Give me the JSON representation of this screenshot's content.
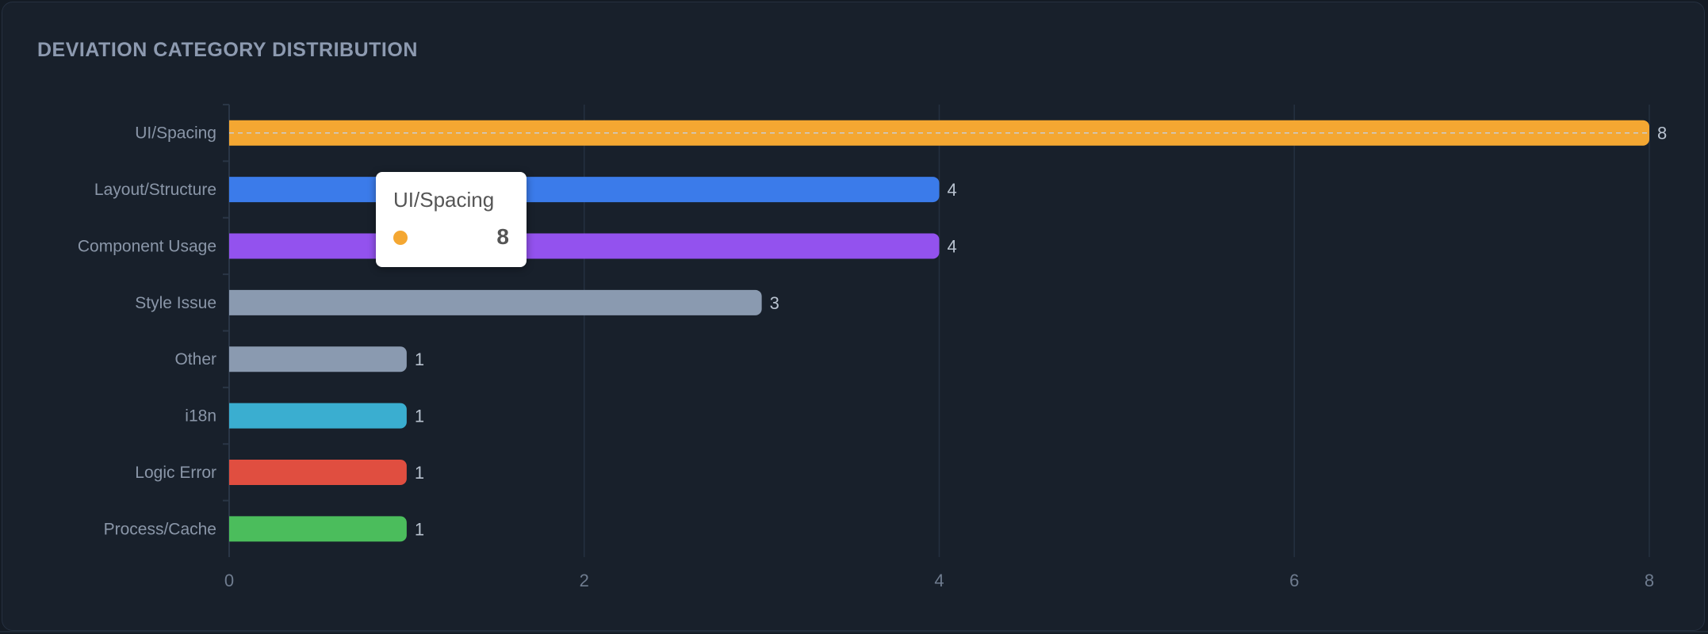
{
  "chart_data": {
    "type": "bar",
    "orientation": "horizontal",
    "title": "DEVIATION CATEGORY DISTRIBUTION",
    "categories": [
      "UI/Spacing",
      "Layout/Structure",
      "Component Usage",
      "Style Issue",
      "Other",
      "i18n",
      "Logic Error",
      "Process/Cache"
    ],
    "values": [
      8,
      4,
      4,
      3,
      1,
      1,
      1,
      1
    ],
    "colors": [
      "#f4a732",
      "#3b7bea",
      "#9352ee",
      "#8a9ab0",
      "#8a9ab0",
      "#3aaed0",
      "#e04e40",
      "#4bbd5c"
    ],
    "xlim": [
      0,
      8
    ],
    "xticks": [
      0,
      2,
      4,
      6,
      8
    ],
    "grid": true,
    "data_labels": true
  },
  "tooltip": {
    "category": "UI/Spacing",
    "value": "8",
    "color": "#f4a732"
  }
}
